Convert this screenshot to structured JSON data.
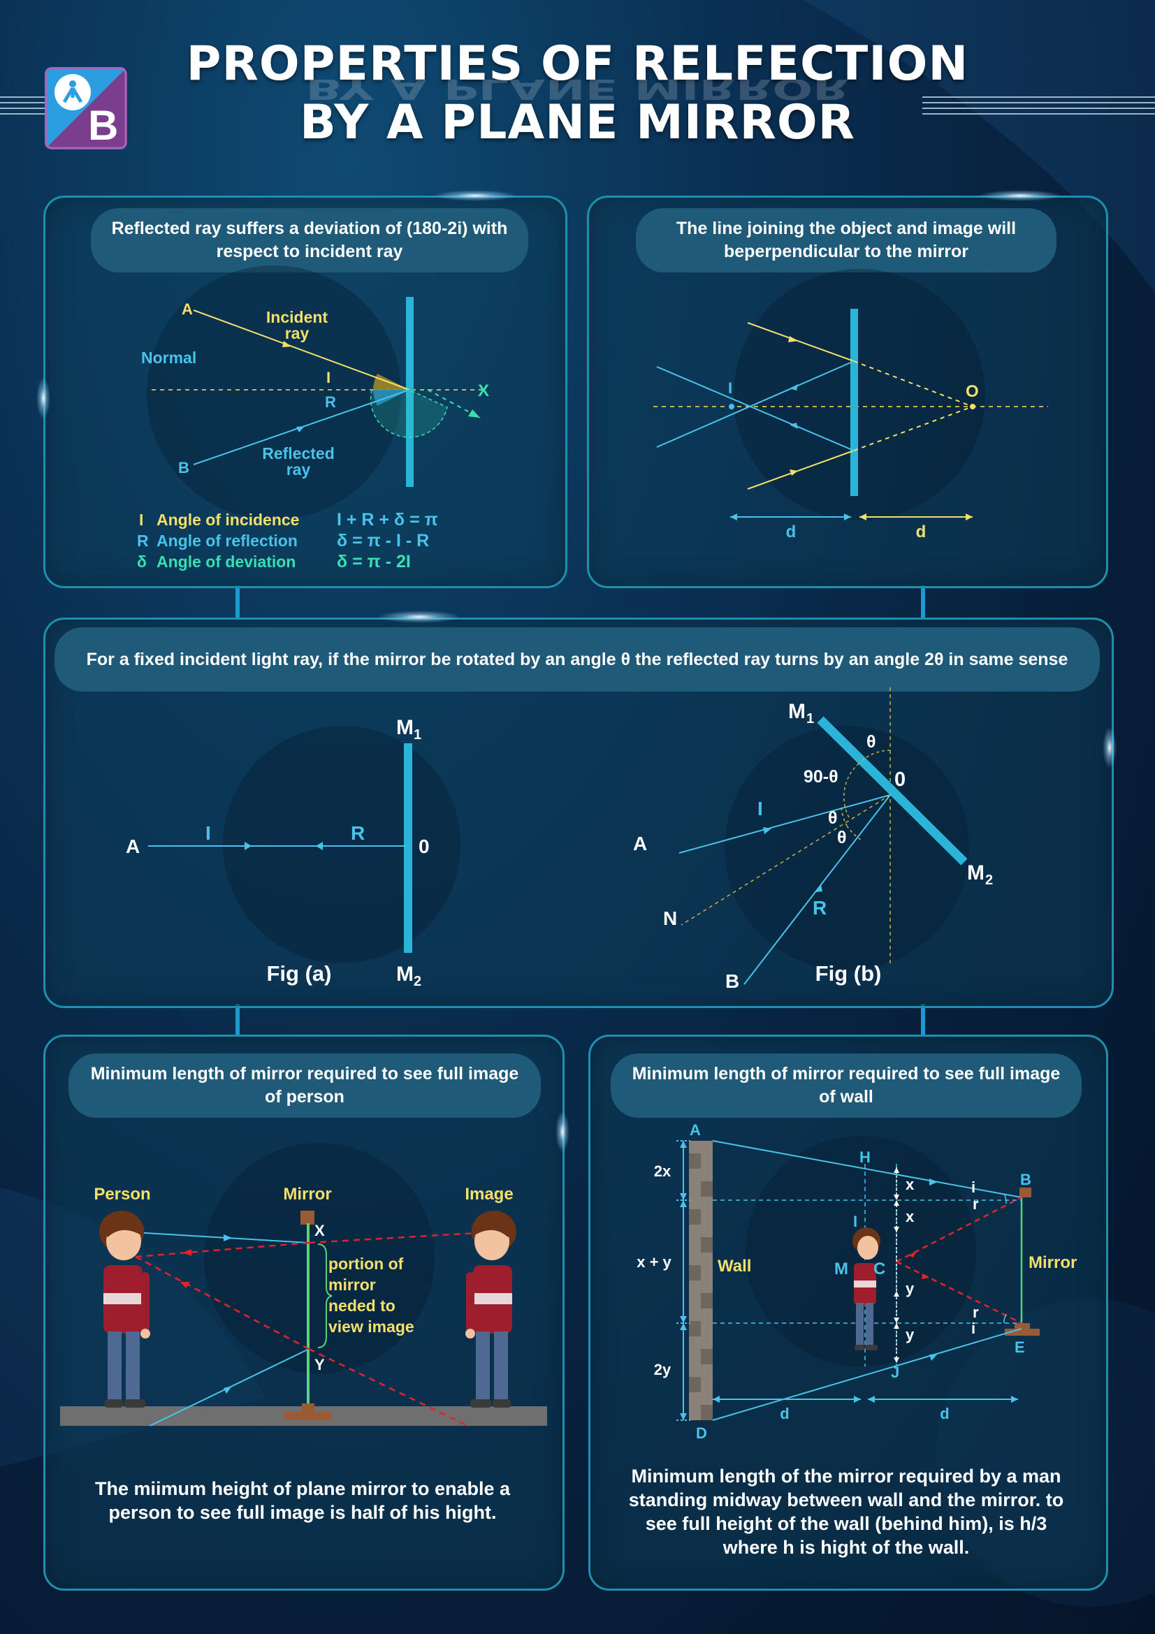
{
  "header": {
    "title_line1": "PROPERTIES OF RELFECTION",
    "title_line2": "BY A PLANE MIRROR"
  },
  "colors": {
    "background": "#0a2f52",
    "panel_border": "#1f8fb0",
    "pill": "#1f5a78",
    "yellow": "#f2e06a",
    "cyan": "#49c3ea",
    "green": "#38e0b0",
    "mirror": "#2bb3d8",
    "red_dashed": "#e0242b"
  },
  "panel1": {
    "heading": "Reflected ray suffers a deviation of (180-2i) with respect to incident ray",
    "labels": {
      "a": "A",
      "b": "B",
      "x": "X",
      "normal": "Normal",
      "incident_l1": "Incident",
      "incident_l2": "ray",
      "reflected_l1": "Reflected",
      "reflected_l2": "ray",
      "i": "I",
      "r": "R"
    },
    "legend": [
      {
        "sym": "I",
        "text": "Angle of incidence"
      },
      {
        "sym": "R",
        "text": "Angle of reflection"
      },
      {
        "sym": "δ",
        "text": "Angle of deviation"
      }
    ],
    "equations": [
      "I + R + δ = π",
      "δ = π - I - R",
      "δ = π - 2I"
    ]
  },
  "panel2": {
    "heading": "The line joining the object and image will beperpendicular to the mirror",
    "labels": {
      "i": "I",
      "o": "O",
      "d_left": "d",
      "d_right": "d"
    }
  },
  "panel3": {
    "heading": "For a fixed incident light ray, if the mirror be rotated by an angle θ the reflected ray turns by an angle 2θ in same sense",
    "fig_a": {
      "caption": "Fig (a)",
      "labels": {
        "a": "A",
        "i": "I",
        "r": "R",
        "o": "0",
        "m1": "M",
        "m1_sub": "1",
        "m2": "M",
        "m2_sub": "2"
      }
    },
    "fig_b": {
      "caption": "Fig (b)",
      "labels": {
        "m1": "M",
        "m1_sub": "1",
        "m2": "M",
        "m2_sub": "2",
        "theta_top": "θ",
        "ninety": "90-θ",
        "o": "0",
        "i": "I",
        "theta1": "θ",
        "theta2": "θ",
        "a": "A",
        "n": "N",
        "r": "R",
        "b": "B"
      }
    }
  },
  "panel4": {
    "heading": "Minimum length of mirror required to see full image of person",
    "labels": {
      "person": "Person",
      "mirror": "Mirror",
      "image": "Image",
      "x": "X",
      "y": "Y",
      "portion": [
        "portion of",
        "mirror",
        "neded to",
        "view image"
      ]
    },
    "caption": "The miimum height of plane mirror to enable a person to see full image is half of his hight."
  },
  "panel5": {
    "heading": "Minimum length of mirror required to see full image of wall",
    "labels": {
      "a": "A",
      "b": "B",
      "d_pt": "D",
      "e": "E",
      "h": "H",
      "j": "J",
      "i_pt": "I",
      "m": "M",
      "c": "C",
      "wall": "Wall",
      "mirror": "Mirror",
      "two_x": "2x",
      "x_plus_y": "x + y",
      "two_y": "2y",
      "x1": "x",
      "x2": "x",
      "y1": "y",
      "y2": "y",
      "i_top": "i",
      "r_top": "r",
      "r_bot": "r",
      "i_bot": "i",
      "d1": "d",
      "d2": "d"
    },
    "caption": "Minimum length of the mirror required by a man standing midway between wall and the mirror. to see full height of the wall (behind him), is h/3 where h is hight of the wall."
  }
}
